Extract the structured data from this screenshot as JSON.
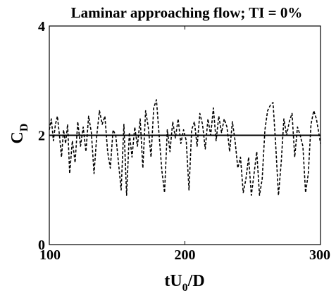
{
  "chart_data": {
    "type": "line",
    "title": "Laminar approaching flow;  TI = 0%",
    "xlabel": {
      "main": "tU",
      "sub": "0",
      "suffix": "/D"
    },
    "ylabel": {
      "main": "C",
      "sub": "D"
    },
    "xlim": [
      100,
      300
    ],
    "ylim": [
      0,
      4
    ],
    "xticks": [
      "100",
      "200",
      "300"
    ],
    "yticks": [
      "0",
      "2",
      "4"
    ],
    "grid": false,
    "legend": "none",
    "series": [
      {
        "style": "solid",
        "color": "#000000",
        "x": [
          100,
          300
        ],
        "y": [
          2.0,
          2.0
        ]
      },
      {
        "style": "dashed",
        "color": "#000000",
        "x": [
          100,
          101.5,
          103,
          104.5,
          106,
          107.5,
          109,
          110.5,
          112,
          113.5,
          115,
          117,
          119,
          121,
          123,
          125,
          127,
          129,
          131,
          133,
          135,
          137,
          139,
          141,
          143,
          145,
          147,
          149,
          151,
          153,
          155,
          157,
          159,
          161,
          163,
          165,
          167,
          169,
          171,
          173,
          175,
          177,
          179,
          181,
          183,
          185,
          187,
          189,
          191,
          193,
          195,
          197,
          199,
          201,
          203,
          205,
          207,
          209,
          211,
          213,
          215,
          217,
          219,
          221,
          223,
          225,
          227,
          229,
          231,
          233,
          235,
          237,
          239,
          241,
          243,
          245,
          247,
          249,
          251,
          253,
          255,
          257,
          259,
          261,
          263,
          265,
          267,
          269,
          271,
          273,
          275,
          277,
          279,
          281,
          283,
          285,
          287,
          289,
          291,
          293,
          295,
          297,
          299,
          300
        ],
        "y": [
          2.1,
          2.3,
          1.9,
          2.2,
          2.35,
          2.0,
          1.6,
          2.1,
          1.85,
          2.2,
          1.3,
          1.9,
          1.5,
          2.25,
          1.8,
          2.15,
          1.7,
          2.35,
          2.05,
          1.3,
          2.0,
          2.45,
          2.2,
          2.35,
          1.7,
          1.4,
          2.1,
          2.0,
          1.5,
          1.0,
          2.2,
          0.9,
          2.05,
          1.6,
          2.15,
          1.8,
          2.3,
          1.4,
          2.45,
          2.15,
          1.6,
          2.5,
          2.65,
          2.0,
          1.35,
          0.95,
          2.1,
          1.7,
          2.25,
          1.95,
          2.3,
          1.85,
          2.1,
          1.9,
          1.0,
          2.1,
          2.25,
          1.8,
          2.4,
          2.2,
          1.75,
          2.3,
          2.0,
          2.5,
          1.9,
          2.35,
          2.05,
          2.3,
          2.15,
          1.7,
          2.25,
          1.9,
          1.4,
          1.6,
          0.95,
          1.2,
          1.6,
          0.9,
          1.3,
          1.7,
          0.9,
          1.2,
          2.1,
          2.45,
          2.55,
          2.6,
          1.8,
          0.9,
          1.5,
          2.3,
          2.0,
          2.25,
          2.4,
          1.6,
          2.15,
          2.0,
          1.8,
          0.95,
          1.3,
          2.2,
          2.45,
          2.3,
          2.0,
          1.85
        ]
      }
    ]
  }
}
